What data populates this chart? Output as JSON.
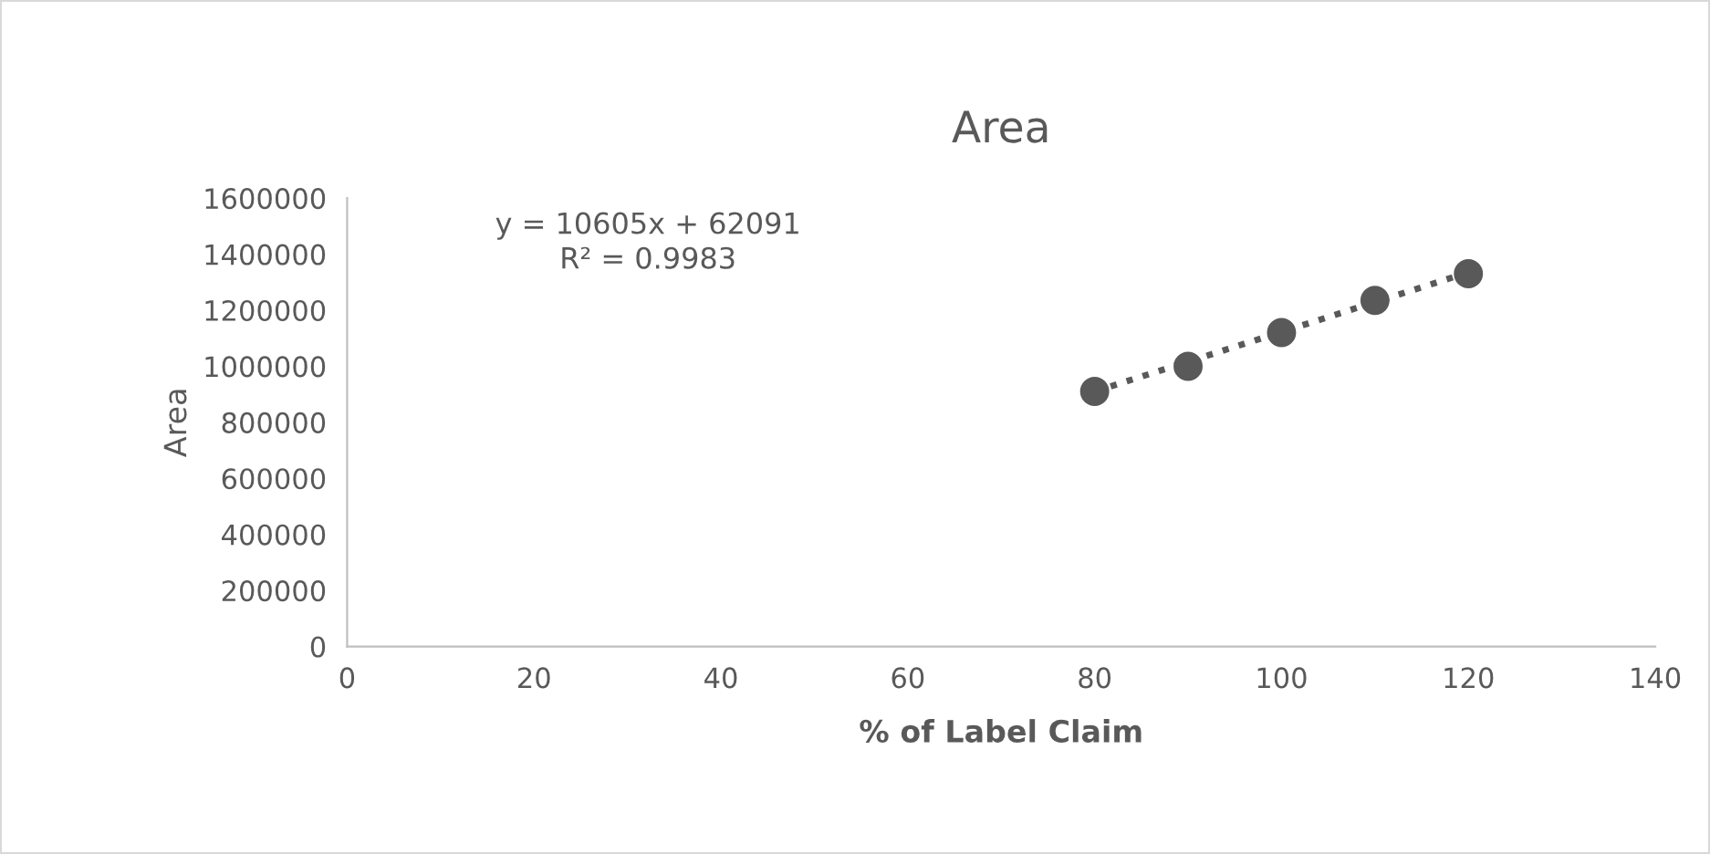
{
  "chart_data": {
    "type": "scatter",
    "title": "Area",
    "xlabel": "% of Label Claim",
    "ylabel": "Area",
    "xlim": [
      0,
      140
    ],
    "xticks": [
      0,
      20,
      40,
      60,
      80,
      100,
      120,
      140
    ],
    "ylim": [
      0,
      1600000
    ],
    "yticks": [
      0,
      200000,
      400000,
      600000,
      800000,
      1000000,
      1200000,
      1400000,
      1600000
    ],
    "grid": false,
    "legend": false,
    "series": [
      {
        "color": "#595959",
        "marker": "circle",
        "x": [
          80,
          90,
          100,
          110,
          120
        ],
        "values": [
          910000,
          1000000,
          1120000,
          1235000,
          1330000
        ]
      },
      {
        "type": "line",
        "color": "#595959",
        "marker": "none",
        "line_style": "dotted",
        "x": [
          80,
          120
        ],
        "values": [
          910000,
          1335000
        ]
      }
    ],
    "annotations": [
      "y = 10605x + 62091\nR² = 0.9983"
    ]
  }
}
